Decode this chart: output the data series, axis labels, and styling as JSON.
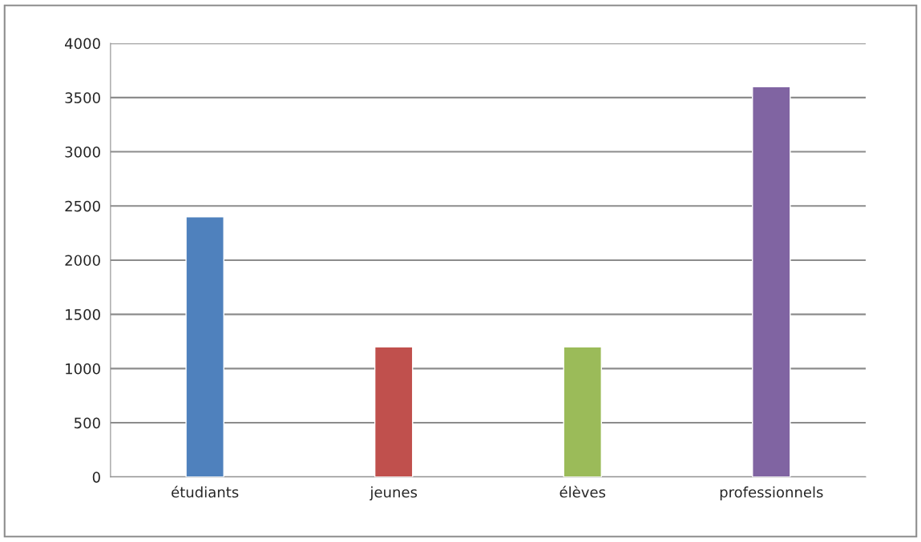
{
  "chart_data": {
    "type": "bar",
    "categories": [
      "étudiants",
      "jeunes",
      "élèves",
      "professionnels"
    ],
    "values": [
      2400,
      1200,
      1200,
      3600
    ],
    "colors": [
      "#4f81bd",
      "#c0504d",
      "#9bbb59",
      "#8064a2"
    ],
    "ylim": [
      0,
      4000
    ],
    "yticks": [
      0,
      500,
      1000,
      1500,
      2000,
      2500,
      3000,
      3500,
      4000
    ],
    "grid": "y",
    "legend": false
  }
}
